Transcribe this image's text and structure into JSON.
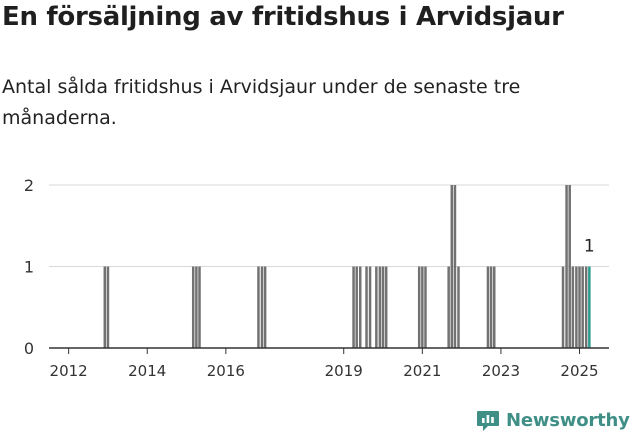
{
  "header": {
    "title": "En försäljning av fritidshus i Arvidsjaur",
    "subtitle": "Antal sålda fritidshus i Arvidsjaur under de senaste tre månaderna."
  },
  "brand": {
    "name": "Newsworthy",
    "color": "#3f8f86"
  },
  "colors": {
    "bar": "#727272",
    "highlight": "#2a9d8f",
    "grid": "#d9d9d9",
    "axis": "#333333"
  },
  "chart_data": {
    "type": "bar",
    "title": "En försäljning av fritidshus i Arvidsjaur",
    "xlabel": "",
    "ylabel": "",
    "ylim": [
      0,
      2
    ],
    "yticks": [
      0,
      1,
      2
    ],
    "xlim": [
      2011.5,
      2025.75
    ],
    "xticks": [
      "2012",
      "2014",
      "2016",
      "2019",
      "2021",
      "2023",
      "2025"
    ],
    "xtick_positions": [
      2012,
      2014,
      2016,
      2019,
      2021,
      2023,
      2025
    ],
    "grid": true,
    "highlight_label": "1",
    "series": [
      {
        "values": [
          {
            "x": 2012.92,
            "y": 1
          },
          {
            "x": 2013.0,
            "y": 1
          },
          {
            "x": 2015.17,
            "y": 1
          },
          {
            "x": 2015.25,
            "y": 1
          },
          {
            "x": 2015.33,
            "y": 1
          },
          {
            "x": 2016.83,
            "y": 1
          },
          {
            "x": 2016.92,
            "y": 1
          },
          {
            "x": 2017.0,
            "y": 1
          },
          {
            "x": 2019.25,
            "y": 1
          },
          {
            "x": 2019.33,
            "y": 1
          },
          {
            "x": 2019.42,
            "y": 1
          },
          {
            "x": 2019.58,
            "y": 1
          },
          {
            "x": 2019.67,
            "y": 1
          },
          {
            "x": 2019.83,
            "y": 1
          },
          {
            "x": 2019.92,
            "y": 1
          },
          {
            "x": 2020.0,
            "y": 1
          },
          {
            "x": 2020.08,
            "y": 1
          },
          {
            "x": 2020.92,
            "y": 1
          },
          {
            "x": 2021.0,
            "y": 1
          },
          {
            "x": 2021.08,
            "y": 1
          },
          {
            "x": 2021.67,
            "y": 1
          },
          {
            "x": 2021.75,
            "y": 2
          },
          {
            "x": 2021.83,
            "y": 2
          },
          {
            "x": 2021.92,
            "y": 1
          },
          {
            "x": 2022.67,
            "y": 1
          },
          {
            "x": 2022.75,
            "y": 1
          },
          {
            "x": 2022.83,
            "y": 1
          },
          {
            "x": 2024.58,
            "y": 1
          },
          {
            "x": 2024.67,
            "y": 2
          },
          {
            "x": 2024.75,
            "y": 2
          },
          {
            "x": 2024.83,
            "y": 1
          },
          {
            "x": 2024.92,
            "y": 1
          },
          {
            "x": 2025.0,
            "y": 1
          },
          {
            "x": 2025.08,
            "y": 1
          },
          {
            "x": 2025.17,
            "y": 1
          },
          {
            "x": 2025.25,
            "y": 1
          }
        ]
      }
    ]
  }
}
